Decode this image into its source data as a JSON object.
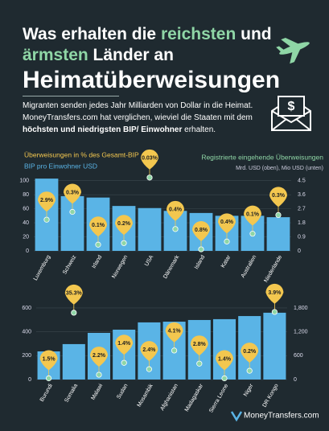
{
  "header": {
    "title": [
      [
        "Was erhalten die ",
        "reichsten",
        " und"
      ],
      [
        "ärmsten",
        " Länder an"
      ],
      [
        "Heimatüberweisungen"
      ]
    ],
    "subtitle": [
      "Migranten senden jedes Jahr Milliarden von Dollar in die Heimat. MoneyTransfers.com hat verglichen, wieviel die Staaten mit dem ",
      "höchsten und niedrigsten BIP/ Einwohner",
      " erhalten."
    ]
  },
  "chart_data": [
    {
      "type": "bar",
      "categories": [
        "Luxemburg",
        "Schweiz",
        "Irland",
        "Norwegen",
        "USA",
        "Dänemark",
        "Island",
        "Katar",
        "Australien",
        "Niederlande"
      ],
      "series": [
        {
          "name": "BIP pro Einwohner USD",
          "color": "#5ab4e6",
          "values": [
            103,
            78,
            76,
            64,
            61,
            57,
            54,
            50,
            50,
            48
          ]
        },
        {
          "name": "Registrierte eingehende Überweisungen",
          "color": "#8fd6a6",
          "axis": "y2",
          "values": [
            2.0,
            2.5,
            0.4,
            0.5,
            4.7,
            1.4,
            0.1,
            0.6,
            1.1,
            2.3
          ]
        },
        {
          "name": "Überweisungen in % des Gesamt-BIP",
          "color": "#f3c74f",
          "values": [
            2.9,
            0.3,
            0.1,
            0.2,
            0.03,
            0.4,
            0.8,
            0.4,
            0.1,
            0.3
          ],
          "value_labels": [
            "2.9%",
            "0.3%",
            "0.1%",
            "0.2%",
            "0.03%",
            "0.4%",
            "0.8%",
            "0.4%",
            "0.1%",
            "0.3%"
          ]
        }
      ],
      "legend_note": "Mrd. USD (oben), Mio USD (unten)",
      "ylim": [
        0,
        110
      ],
      "yticks": [
        0,
        20,
        40,
        60,
        80,
        100
      ],
      "y2lim": [
        0,
        4.95
      ],
      "y2ticks": [
        0,
        0.9,
        1.8,
        2.7,
        3.6,
        4.5
      ],
      "grid": true
    },
    {
      "type": "bar",
      "categories": [
        "Burundi",
        "Somalia",
        "Malawi",
        "Sudan",
        "Mosambik",
        "Afghanistan",
        "Madagaskar",
        "Sierra Leone",
        "Niger",
        "DR Kongo"
      ],
      "series": [
        {
          "color": "#5ab4e6",
          "values": [
            236,
            297,
            391,
            418,
            479,
            485,
            499,
            506,
            532,
            560
          ]
        },
        {
          "color": "#8fd6a6",
          "axis": "y2",
          "values": [
            30,
            1680,
            120,
            420,
            260,
            730,
            400,
            30,
            220,
            1700
          ]
        },
        {
          "color": "#f3c74f",
          "values": [
            1.5,
            35.3,
            2.2,
            1.4,
            2.4,
            4.1,
            2.8,
            1.4,
            0.2,
            3.9
          ],
          "value_labels": [
            "1.5%",
            "35.3%",
            "2.2%",
            "1.4%",
            "2.4%",
            "4.1%",
            "2.8%",
            "1.4%",
            "0.2%",
            "3.9%"
          ]
        }
      ],
      "ylim": [
        0,
        620
      ],
      "yticks": [
        0,
        200,
        400,
        600
      ],
      "y2lim": [
        0,
        1860
      ],
      "y2ticks": [
        0,
        600,
        {
          "value": 1200,
          "label": "1,200"
        },
        {
          "value": 1800,
          "label": "1,800"
        }
      ],
      "grid": true
    }
  ],
  "footer": "MoneyTransfers.com"
}
